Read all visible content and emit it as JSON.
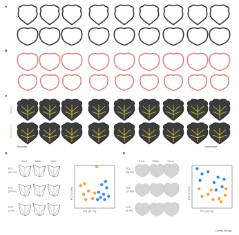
{
  "panels": {
    "a": {
      "letter": "A"
    },
    "b": {
      "letter": "B"
    },
    "c": {
      "letter": "C",
      "row_label_top": "Wild (1)",
      "row_label_bottom": "Cultivated (2)",
      "caption_left": "Shoulder",
      "caption_right": "Short base"
    },
    "d": {
      "letter": "D",
      "col_labels": [
        "-3 s.d.",
        "Mean",
        "+3 s.d."
      ],
      "pc_labels": [
        "PC1",
        "PC2",
        "PC3"
      ],
      "pc_values": [
        "41.7%",
        "23.6%",
        "17%"
      ],
      "chart_data": {
        "type": "scatter",
        "xlabel": "PC1 (41.7%)",
        "ylabel": "PC2 (23.6%)",
        "series": [
          {
            "color": "#f2a33a",
            "points": [
              [
                0.1,
                0.95
              ],
              [
                -0.5,
                0.15
              ],
              [
                -0.7,
                0.05
              ],
              [
                -0.3,
                -0.2
              ],
              [
                -0.1,
                -0.55
              ],
              [
                -0.45,
                -0.6
              ],
              [
                0.0,
                -0.3
              ],
              [
                -0.55,
                -0.35
              ]
            ]
          },
          {
            "color": "#2f8be0",
            "points": [
              [
                0.55,
                0.25
              ],
              [
                0.35,
                0.1
              ],
              [
                0.6,
                -0.05
              ],
              [
                0.2,
                -0.25
              ],
              [
                0.45,
                -0.35
              ],
              [
                0.7,
                -0.45
              ],
              [
                0.3,
                -0.5
              ],
              [
                0.15,
                -0.6
              ],
              [
                0.5,
                -0.6
              ]
            ]
          }
        ]
      }
    },
    "e": {
      "letter": "E",
      "col_labels": [
        "-3 s.d.",
        "Mean",
        "+3 s.d."
      ],
      "pc_labels": [
        "PC1",
        "PC2",
        "PC3"
      ],
      "pc_values": [
        "28.7%",
        "17.8%",
        "9.2%"
      ],
      "chart_data": {
        "type": "scatter",
        "xlabel": "PC1 (28.7%)",
        "ylabel": "PC2 (17.8%)",
        "series": [
          {
            "color": "#2f8be0",
            "points": [
              [
                -0.75,
                0.85
              ],
              [
                -0.5,
                0.6
              ],
              [
                -0.2,
                0.7
              ],
              [
                -0.6,
                0.3
              ],
              [
                0.1,
                0.2
              ],
              [
                0.3,
                0.45
              ],
              [
                0.6,
                0.35
              ],
              [
                0.5,
                0.0
              ],
              [
                0.2,
                -0.15
              ]
            ]
          },
          {
            "color": "#f2a33a",
            "points": [
              [
                -0.65,
                -0.1
              ],
              [
                -0.5,
                -0.45
              ],
              [
                -0.2,
                -0.35
              ],
              [
                0.05,
                -0.6
              ],
              [
                0.35,
                -0.55
              ],
              [
                0.65,
                -0.4
              ],
              [
                0.7,
                -0.1
              ],
              [
                -0.05,
                -0.15
              ],
              [
                0.45,
                -0.7
              ]
            ]
          }
        ]
      }
    }
  },
  "footer": {
    "credit": "Current Biology"
  }
}
